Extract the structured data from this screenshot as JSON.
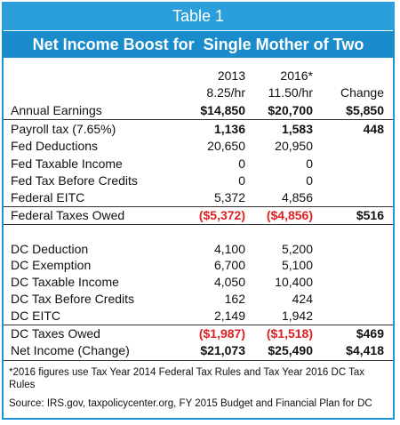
{
  "header": {
    "label": "Table 1",
    "title": "Net Income Boost for  Single Mother of Two"
  },
  "table": {
    "columns": [
      {
        "year": "2013",
        "rate": "8.25/hr"
      },
      {
        "year": "2016*",
        "rate": "11.50/hr"
      }
    ],
    "change_header": "Change",
    "rows": [
      [
        "Annual Earnings",
        "$14,850",
        "$20,700",
        "$5,850"
      ],
      [
        "Payroll tax (7.65%)",
        "1,136",
        "1,583",
        "448"
      ],
      [
        "Fed Deductions",
        "20,650",
        "20,950"
      ],
      [
        "Fed Taxable Income",
        "0",
        "0"
      ],
      [
        "Fed Tax Before Credits",
        "0",
        "0"
      ],
      [
        "Federal EITC",
        "5,372",
        "4,856"
      ],
      [
        "Federal Taxes Owed",
        "($5,372)",
        "($4,856)",
        "$516"
      ],
      [
        "DC Deduction",
        "4,100",
        "5,200"
      ],
      [
        "DC Exemption",
        "6,700",
        "5,100"
      ],
      [
        "DC Taxable Income",
        "4,050",
        "10,400"
      ],
      [
        "DC Tax Before Credits",
        "162",
        "424"
      ],
      [
        "DC EITC",
        "2,149",
        "1,942"
      ],
      [
        "DC Taxes Owed",
        "($1,987)",
        "($1,518)",
        "$469"
      ],
      [
        "Net Income (Change)",
        "$21,073",
        "$25,490",
        "$4,418"
      ]
    ],
    "footnote": "*2016 figures use Tax Year 2014 Federal Tax Rules and Tax Year 2016 DC Tax Rules",
    "source": "Source: IRS.gov, taxpolicycenter.org, FY 2015 Budget and Financial Plan for DC"
  }
}
